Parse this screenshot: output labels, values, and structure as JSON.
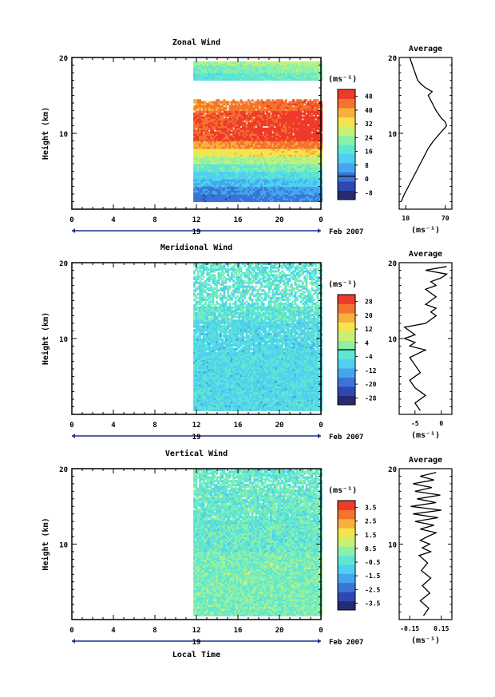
{
  "chart_data": [
    {
      "type": "heatmap",
      "title": "Zonal Wind",
      "xlabel": "",
      "ylabel": "Height (km)",
      "date_label": "Feb 2007",
      "day_label": "19",
      "x_ticks": [
        "0",
        "4",
        "8",
        "12",
        "16",
        "20",
        "0"
      ],
      "y_ticks": [
        "10",
        "20"
      ],
      "xlim_hours": [
        0,
        24
      ],
      "ylim_km": [
        0,
        20
      ],
      "data_start_hour": 11.7,
      "colorbar_unit": "(ms⁻¹)",
      "colorbar_ticks": [
        "48",
        "40",
        "32",
        "24",
        "16",
        "8",
        "0",
        "-8"
      ],
      "colorbar_range": [
        -12,
        52
      ],
      "profile_layers_km": [
        {
          "from": 1,
          "to": 2,
          "value": 2
        },
        {
          "from": 2,
          "to": 3,
          "value": 5
        },
        {
          "from": 3,
          "to": 4,
          "value": 10
        },
        {
          "from": 4,
          "to": 5,
          "value": 14
        },
        {
          "from": 5,
          "to": 6,
          "value": 20
        },
        {
          "from": 6,
          "to": 7,
          "value": 26
        },
        {
          "from": 7,
          "to": 8,
          "value": 34
        },
        {
          "from": 8,
          "to": 9,
          "value": 42
        },
        {
          "from": 9,
          "to": 13,
          "value": 48
        },
        {
          "from": 13,
          "to": 14.5,
          "value": 44
        },
        {
          "from": 17,
          "to": 18,
          "value": 18
        },
        {
          "from": 18,
          "to": 18.8,
          "value": 22
        },
        {
          "from": 18.8,
          "to": 19.3,
          "value": 26
        }
      ],
      "average_profile": {
        "title": "Average",
        "x_ticks": [
          "10",
          "70"
        ],
        "xlim": [
          0,
          80
        ],
        "unit": "(ms⁻¹)",
        "height_km": [
          1,
          2,
          3,
          4,
          5,
          6,
          7,
          8,
          9,
          10,
          10.5,
          11,
          11.5,
          12,
          13,
          14,
          15,
          15.5,
          16,
          16.5,
          17,
          17.5,
          18,
          18.5,
          19,
          19.5,
          20
        ],
        "values": [
          3,
          8,
          14,
          20,
          26,
          32,
          38,
          44,
          52,
          62,
          67,
          72,
          70,
          64,
          56,
          50,
          44,
          50,
          40,
          33,
          28,
          26,
          24,
          22,
          20,
          18,
          16
        ]
      }
    },
    {
      "type": "heatmap",
      "title": "Meridional Wind",
      "xlabel": "",
      "ylabel": "Height (km)",
      "date_label": "Feb 2007",
      "day_label": "19",
      "x_ticks": [
        "0",
        "4",
        "8",
        "12",
        "16",
        "20",
        "0"
      ],
      "y_ticks": [
        "10",
        "20"
      ],
      "xlim_hours": [
        0,
        24
      ],
      "ylim_km": [
        0,
        20
      ],
      "data_start_hour": 11.7,
      "colorbar_unit": "(ms⁻¹)",
      "colorbar_ticks": [
        "28",
        "20",
        "12",
        "4",
        "-4",
        "-12",
        "-20",
        "-28"
      ],
      "colorbar_range": [
        -32,
        32
      ],
      "average_profile": {
        "title": "Average",
        "x_ticks": [
          "-5",
          "0"
        ],
        "xlim": [
          -8,
          2
        ],
        "unit": "(ms⁻¹)",
        "height_km": [
          0.5,
          1.5,
          2.5,
          3.5,
          4.5,
          5.5,
          6.5,
          7.5,
          8.5,
          9,
          9.5,
          10,
          10.5,
          11,
          11.5,
          12,
          12.5,
          13,
          13.5,
          14,
          14.5,
          15,
          15.5,
          16,
          16.5,
          17,
          17.5,
          18,
          18.5,
          19,
          19.5
        ],
        "values": [
          -4,
          -5,
          -3,
          -5,
          -6,
          -4,
          -5,
          -6,
          -3,
          -6,
          -5,
          -7,
          -5,
          -6,
          -7,
          -3,
          -2,
          -1,
          -2,
          -1,
          -3,
          -2,
          -1,
          -2,
          -3,
          -1,
          -2,
          0,
          1,
          -3,
          1
        ]
      }
    },
    {
      "type": "heatmap",
      "title": "Vertical Wind",
      "xlabel": "Local Time",
      "ylabel": "Height (km)",
      "date_label": "Feb 2007",
      "day_label": "19",
      "x_ticks": [
        "0",
        "4",
        "8",
        "12",
        "16",
        "20",
        "0"
      ],
      "y_ticks": [
        "10",
        "20"
      ],
      "xlim_hours": [
        0,
        24
      ],
      "ylim_km": [
        0,
        20
      ],
      "data_start_hour": 11.7,
      "colorbar_unit": "(ms⁻¹)",
      "colorbar_ticks": [
        "3.5",
        "2.5",
        "1.5",
        "0.5",
        "-0.5",
        "-1.5",
        "-2.5",
        "-3.5"
      ],
      "colorbar_range": [
        -4,
        4
      ],
      "average_profile": {
        "title": "Average",
        "x_ticks": [
          "-0.15",
          "0.15"
        ],
        "xlim": [
          -0.25,
          0.25
        ],
        "unit": "(ms⁻¹)",
        "height_km": [
          0.5,
          1.5,
          2.5,
          3.5,
          4.5,
          5.5,
          6.5,
          7.5,
          8.5,
          9,
          9.5,
          10,
          10.5,
          11,
          11.5,
          12,
          12.5,
          13,
          13.5,
          14,
          14.5,
          15,
          15.5,
          16,
          16.5,
          17,
          17.5,
          18,
          18.5,
          19,
          19.5
        ],
        "values": [
          -0.02,
          0.03,
          -0.05,
          0.04,
          -0.03,
          0.05,
          -0.04,
          0.02,
          -0.06,
          0.05,
          -0.03,
          0.04,
          -0.05,
          0.02,
          0.1,
          -0.05,
          0.08,
          -0.1,
          0.12,
          -0.12,
          0.15,
          -0.14,
          0.1,
          -0.08,
          0.14,
          -0.1,
          0.06,
          -0.12,
          0.08,
          -0.05,
          0.1
        ]
      }
    }
  ],
  "colors": {
    "palette": [
      "#262a73",
      "#2f47b0",
      "#3b74d6",
      "#45a6ee",
      "#4fd0f0",
      "#5fe6d2",
      "#8cf0a8",
      "#c8f075",
      "#f4e44e",
      "#f7b03c",
      "#f4732e",
      "#ee3a2b"
    ]
  }
}
